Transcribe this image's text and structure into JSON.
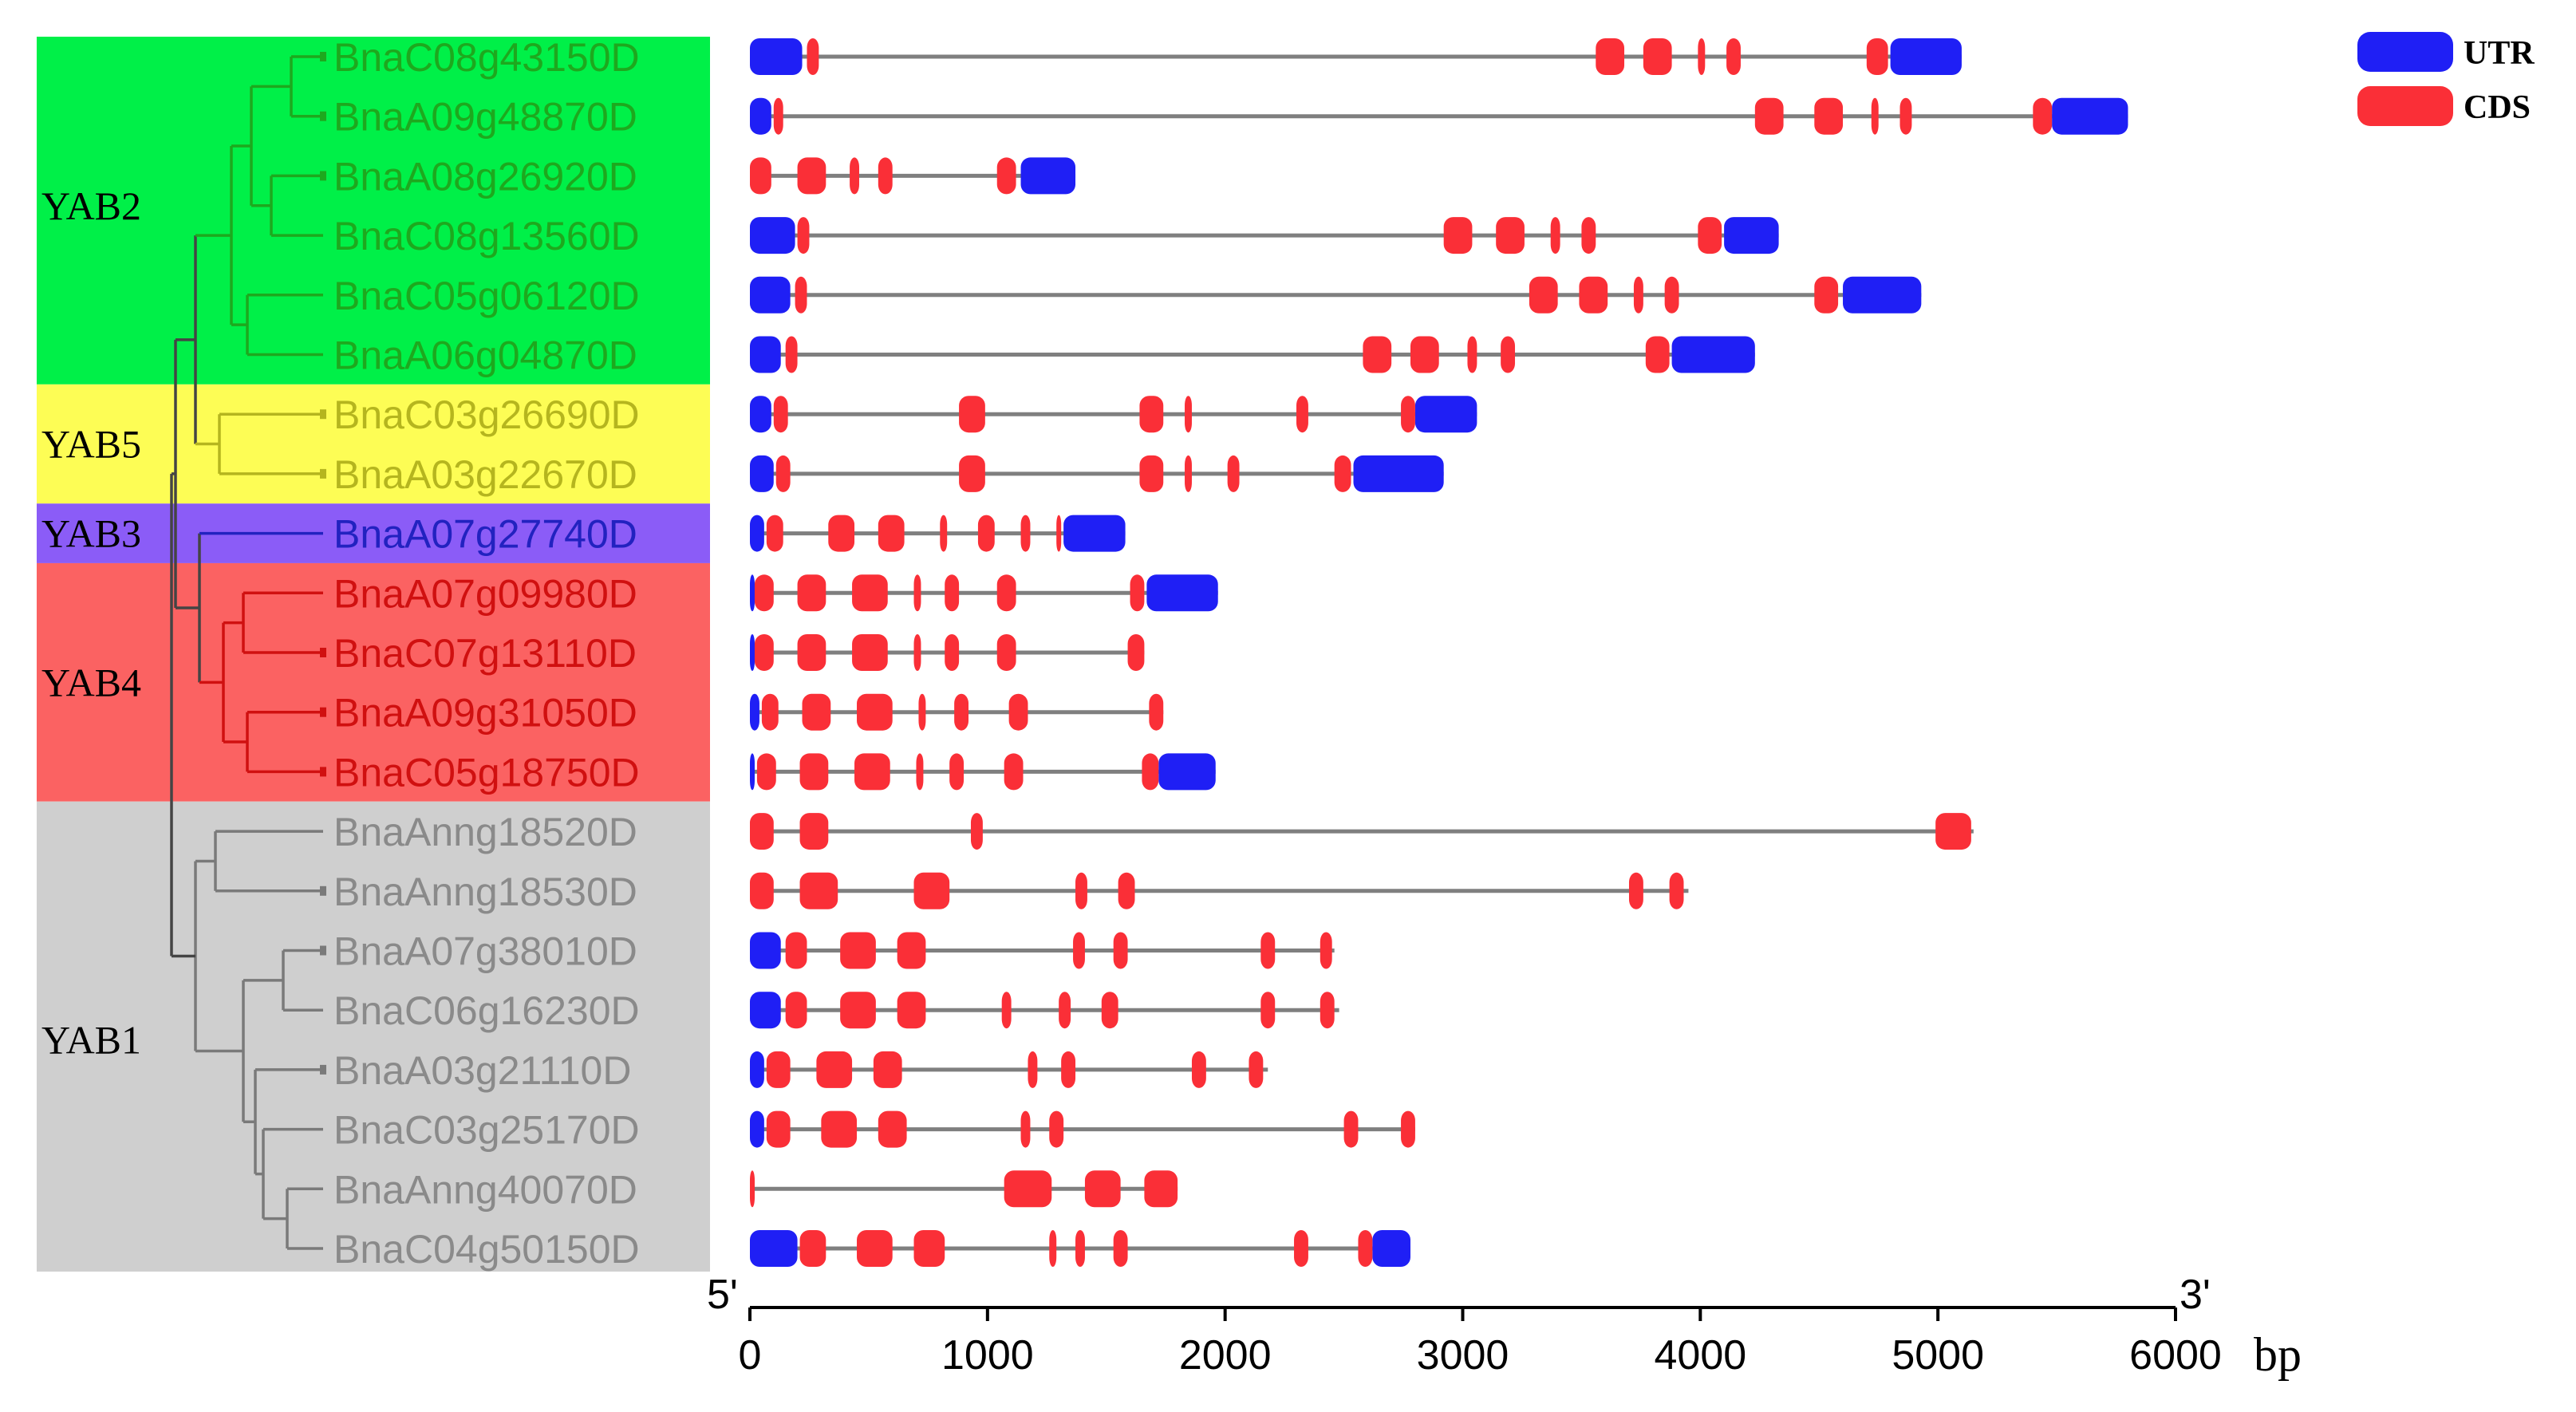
{
  "chart_data": {
    "type": "gene_structure",
    "x_unit": "bp",
    "xlim": [
      0,
      6000
    ],
    "x_ticks": [
      "0",
      "1000",
      "2000",
      "3000",
      "4000",
      "5000",
      "6000"
    ],
    "five_prime_label": "5'",
    "three_prime_label": "3'",
    "legend": [
      {
        "label": "UTR",
        "color": "#1f1ff5"
      },
      {
        "label": "CDS",
        "color": "#fa2f37"
      }
    ],
    "groups": [
      {
        "name": "YAB2",
        "color": "#00f048",
        "text_color": "#1ea81e",
        "first_row": 0,
        "last_row": 5
      },
      {
        "name": "YAB5",
        "color": "#fdfd55",
        "text_color": "#b5b51e",
        "first_row": 6,
        "last_row": 7
      },
      {
        "name": "YAB3",
        "color": "#8b5cf7",
        "text_color": "#2222c0",
        "first_row": 8,
        "last_row": 8
      },
      {
        "name": "YAB4",
        "color": "#fb6262",
        "text_color": "#d01010",
        "first_row": 9,
        "last_row": 12
      },
      {
        "name": "YAB1",
        "color": "#cfcfcf",
        "text_color": "#8a8a8a",
        "first_row": 13,
        "last_row": 20
      }
    ],
    "genes": [
      {
        "name": "BnaC08g43150D",
        "length": 5100,
        "utr": [
          [
            0,
            220
          ],
          [
            4800,
            5100
          ]
        ],
        "cds": [
          [
            240,
            290
          ],
          [
            3560,
            3680
          ],
          [
            3760,
            3880
          ],
          [
            3990,
            4020
          ],
          [
            4110,
            4170
          ],
          [
            4700,
            4790
          ]
        ]
      },
      {
        "name": "BnaA09g48870D",
        "length": 5800,
        "utr": [
          [
            0,
            90
          ],
          [
            5480,
            5800
          ]
        ],
        "cds": [
          [
            100,
            140
          ],
          [
            4230,
            4350
          ],
          [
            4480,
            4600
          ],
          [
            4720,
            4750
          ],
          [
            4840,
            4890
          ],
          [
            5400,
            5480
          ]
        ]
      },
      {
        "name": "BnaA08g26920D",
        "length": 1370,
        "utr": [
          [
            1140,
            1370
          ]
        ],
        "cds": [
          [
            0,
            90
          ],
          [
            200,
            320
          ],
          [
            420,
            460
          ],
          [
            540,
            600
          ],
          [
            1040,
            1120
          ]
        ]
      },
      {
        "name": "BnaC08g13560D",
        "length": 4330,
        "utr": [
          [
            0,
            190
          ],
          [
            4100,
            4330
          ]
        ],
        "cds": [
          [
            200,
            250
          ],
          [
            2920,
            3040
          ],
          [
            3140,
            3260
          ],
          [
            3370,
            3410
          ],
          [
            3500,
            3560
          ],
          [
            3990,
            4090
          ]
        ]
      },
      {
        "name": "BnaC05g06120D",
        "length": 4930,
        "utr": [
          [
            0,
            170
          ],
          [
            4600,
            4930
          ]
        ],
        "cds": [
          [
            190,
            240
          ],
          [
            3280,
            3400
          ],
          [
            3490,
            3610
          ],
          [
            3720,
            3760
          ],
          [
            3850,
            3910
          ],
          [
            4480,
            4580
          ]
        ]
      },
      {
        "name": "BnaA06g04870D",
        "length": 4230,
        "utr": [
          [
            0,
            130
          ],
          [
            3880,
            4230
          ]
        ],
        "cds": [
          [
            150,
            200
          ],
          [
            2580,
            2700
          ],
          [
            2780,
            2900
          ],
          [
            3020,
            3060
          ],
          [
            3160,
            3220
          ],
          [
            3770,
            3870
          ]
        ]
      },
      {
        "name": "BnaC03g26690D",
        "length": 3060,
        "utr": [
          [
            0,
            90
          ],
          [
            2800,
            3060
          ]
        ],
        "cds": [
          [
            100,
            160
          ],
          [
            880,
            990
          ],
          [
            1640,
            1740
          ],
          [
            1830,
            1860
          ],
          [
            2300,
            2350
          ],
          [
            2740,
            2800
          ]
        ]
      },
      {
        "name": "BnaA03g22670D",
        "length": 2920,
        "utr": [
          [
            0,
            100
          ],
          [
            2540,
            2920
          ]
        ],
        "cds": [
          [
            110,
            170
          ],
          [
            880,
            990
          ],
          [
            1640,
            1740
          ],
          [
            1830,
            1860
          ],
          [
            2010,
            2060
          ],
          [
            2460,
            2530
          ]
        ]
      },
      {
        "name": "BnaA07g27740D",
        "length": 1580,
        "utr": [
          [
            0,
            60
          ],
          [
            1320,
            1580
          ]
        ],
        "cds": [
          [
            70,
            140
          ],
          [
            330,
            440
          ],
          [
            540,
            650
          ],
          [
            800,
            830
          ],
          [
            960,
            1030
          ],
          [
            1140,
            1180
          ],
          [
            1290,
            1300
          ]
        ]
      },
      {
        "name": "BnaA07g09980D",
        "length": 1970,
        "utr": [
          [
            0,
            10
          ],
          [
            1670,
            1970
          ]
        ],
        "cds": [
          [
            20,
            100
          ],
          [
            200,
            320
          ],
          [
            430,
            580
          ],
          [
            690,
            720
          ],
          [
            820,
            880
          ],
          [
            1040,
            1120
          ],
          [
            1600,
            1660
          ]
        ]
      },
      {
        "name": "BnaC07g13110D",
        "length": 1660,
        "utr": [
          [
            0,
            10
          ]
        ],
        "cds": [
          [
            20,
            100
          ],
          [
            200,
            320
          ],
          [
            430,
            580
          ],
          [
            690,
            720
          ],
          [
            820,
            880
          ],
          [
            1040,
            1120
          ],
          [
            1590,
            1660
          ]
        ]
      },
      {
        "name": "BnaA09g31050D",
        "length": 1740,
        "utr": [
          [
            0,
            40
          ]
        ],
        "cds": [
          [
            50,
            120
          ],
          [
            220,
            340
          ],
          [
            450,
            600
          ],
          [
            710,
            740
          ],
          [
            860,
            920
          ],
          [
            1090,
            1170
          ],
          [
            1680,
            1740
          ]
        ]
      },
      {
        "name": "BnaC05g18750D",
        "length": 1960,
        "utr": [
          [
            0,
            20
          ],
          [
            1720,
            1960
          ]
        ],
        "cds": [
          [
            30,
            110
          ],
          [
            210,
            330
          ],
          [
            440,
            590
          ],
          [
            700,
            730
          ],
          [
            840,
            900
          ],
          [
            1070,
            1150
          ],
          [
            1650,
            1720
          ]
        ]
      },
      {
        "name": "BnaAnng18520D",
        "length": 5150,
        "utr": [],
        "cds": [
          [
            0,
            100
          ],
          [
            210,
            330
          ],
          [
            930,
            980
          ],
          [
            4990,
            5140
          ]
        ]
      },
      {
        "name": "BnaAnng18530D",
        "length": 3950,
        "utr": [],
        "cds": [
          [
            0,
            100
          ],
          [
            210,
            370
          ],
          [
            690,
            840
          ],
          [
            1370,
            1420
          ],
          [
            1550,
            1620
          ],
          [
            3700,
            3760
          ],
          [
            3870,
            3930
          ]
        ]
      },
      {
        "name": "BnaA07g38010D",
        "length": 2460,
        "utr": [
          [
            0,
            130
          ]
        ],
        "cds": [
          [
            150,
            240
          ],
          [
            380,
            530
          ],
          [
            620,
            740
          ],
          [
            1360,
            1410
          ],
          [
            1530,
            1590
          ],
          [
            2150,
            2210
          ],
          [
            2400,
            2450
          ]
        ]
      },
      {
        "name": "BnaC06g16230D",
        "length": 2480,
        "utr": [
          [
            0,
            130
          ]
        ],
        "cds": [
          [
            150,
            240
          ],
          [
            380,
            530
          ],
          [
            620,
            740
          ],
          [
            1060,
            1100
          ],
          [
            1300,
            1350
          ],
          [
            1480,
            1550
          ],
          [
            2150,
            2210
          ],
          [
            2400,
            2460
          ]
        ]
      },
      {
        "name": "BnaA03g21110D",
        "length": 2180,
        "utr": [
          [
            0,
            60
          ]
        ],
        "cds": [
          [
            70,
            170
          ],
          [
            280,
            430
          ],
          [
            520,
            640
          ],
          [
            1170,
            1210
          ],
          [
            1310,
            1370
          ],
          [
            1860,
            1920
          ],
          [
            2100,
            2160
          ]
        ]
      },
      {
        "name": "BnaC03g25170D",
        "length": 2800,
        "utr": [
          [
            0,
            60
          ]
        ],
        "cds": [
          [
            70,
            170
          ],
          [
            300,
            450
          ],
          [
            540,
            660
          ],
          [
            1140,
            1180
          ],
          [
            1260,
            1320
          ],
          [
            2500,
            2560
          ],
          [
            2740,
            2800
          ]
        ]
      },
      {
        "name": "BnaAnng40070D",
        "length": 1800,
        "utr": [],
        "cds": [
          [
            0,
            10
          ],
          [
            1070,
            1270
          ],
          [
            1410,
            1560
          ],
          [
            1660,
            1800
          ]
        ]
      },
      {
        "name": "BnaC04g50150D",
        "length": 2780,
        "utr": [
          [
            0,
            200
          ],
          [
            2620,
            2780
          ]
        ],
        "cds": [
          [
            210,
            320
          ],
          [
            450,
            600
          ],
          [
            690,
            820
          ],
          [
            1260,
            1290
          ],
          [
            1370,
            1410
          ],
          [
            1530,
            1590
          ],
          [
            2290,
            2350
          ],
          [
            2560,
            2620
          ]
        ]
      }
    ]
  }
}
